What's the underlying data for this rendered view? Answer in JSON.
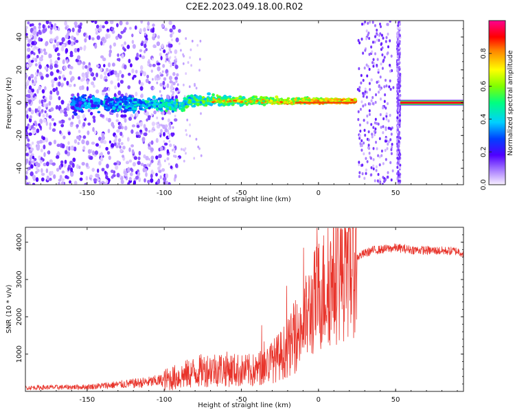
{
  "chart_data": [
    {
      "type": "heatmap",
      "title": "C2E2.2023.049.18.00.R02",
      "xlabel": "Height of straight line (km)",
      "ylabel": "Frequency (Hz)",
      "xlim": [
        -190,
        94
      ],
      "ylim": [
        -50,
        50
      ],
      "xticks": [
        -150,
        -100,
        -50,
        0,
        50
      ],
      "yticks": [
        -40,
        -20,
        0,
        20,
        40
      ],
      "colorbar": {
        "label": "Normalized spectral amplitude",
        "range": [
          0,
          1
        ],
        "ticks": [
          0.0,
          0.2,
          0.4,
          0.6,
          0.8
        ],
        "colormap": [
          "#f8f0ff",
          "#a070ff",
          "#5000ff",
          "#0040ff",
          "#00d0ff",
          "#00ff80",
          "#80ff00",
          "#ffff00",
          "#ff8000",
          "#ff0000",
          "#ff0090"
        ]
      },
      "features": {
        "centerline_hz": 0,
        "noise_region_km": [
          -190,
          -100
        ],
        "scatter_band_km": [
          -100,
          24
        ],
        "gaps_km": [
          [
            25,
            27
          ],
          [
            51,
            53
          ]
        ],
        "clean_line_km": [
          53,
          94
        ]
      }
    },
    {
      "type": "line",
      "xlabel": "Height of straight line (km)",
      "ylabel": "SNR (10 * v/v)",
      "xlim": [
        -190,
        94
      ],
      "ylim": [
        0,
        4400
      ],
      "xticks": [
        -150,
        -100,
        -50,
        0,
        50
      ],
      "yticks": [
        1000,
        2000,
        3000,
        4000
      ],
      "color": "#e8332a",
      "x": [
        -190,
        -170,
        -150,
        -130,
        -110,
        -100,
        -90,
        -80,
        -70,
        -60,
        -50,
        -40,
        -35,
        -30,
        -25,
        -20,
        -15,
        -10,
        -5,
        0,
        5,
        10,
        15,
        20,
        25,
        30,
        35,
        40,
        50,
        60,
        70,
        80,
        90,
        94
      ],
      "y": [
        100,
        110,
        120,
        180,
        250,
        300,
        400,
        520,
        600,
        600,
        550,
        560,
        700,
        800,
        950,
        1150,
        1400,
        1800,
        2200,
        2600,
        2800,
        3000,
        3200,
        3400,
        3600,
        3700,
        3780,
        3800,
        3850,
        3800,
        3780,
        3770,
        3760,
        3700
      ]
    }
  ]
}
